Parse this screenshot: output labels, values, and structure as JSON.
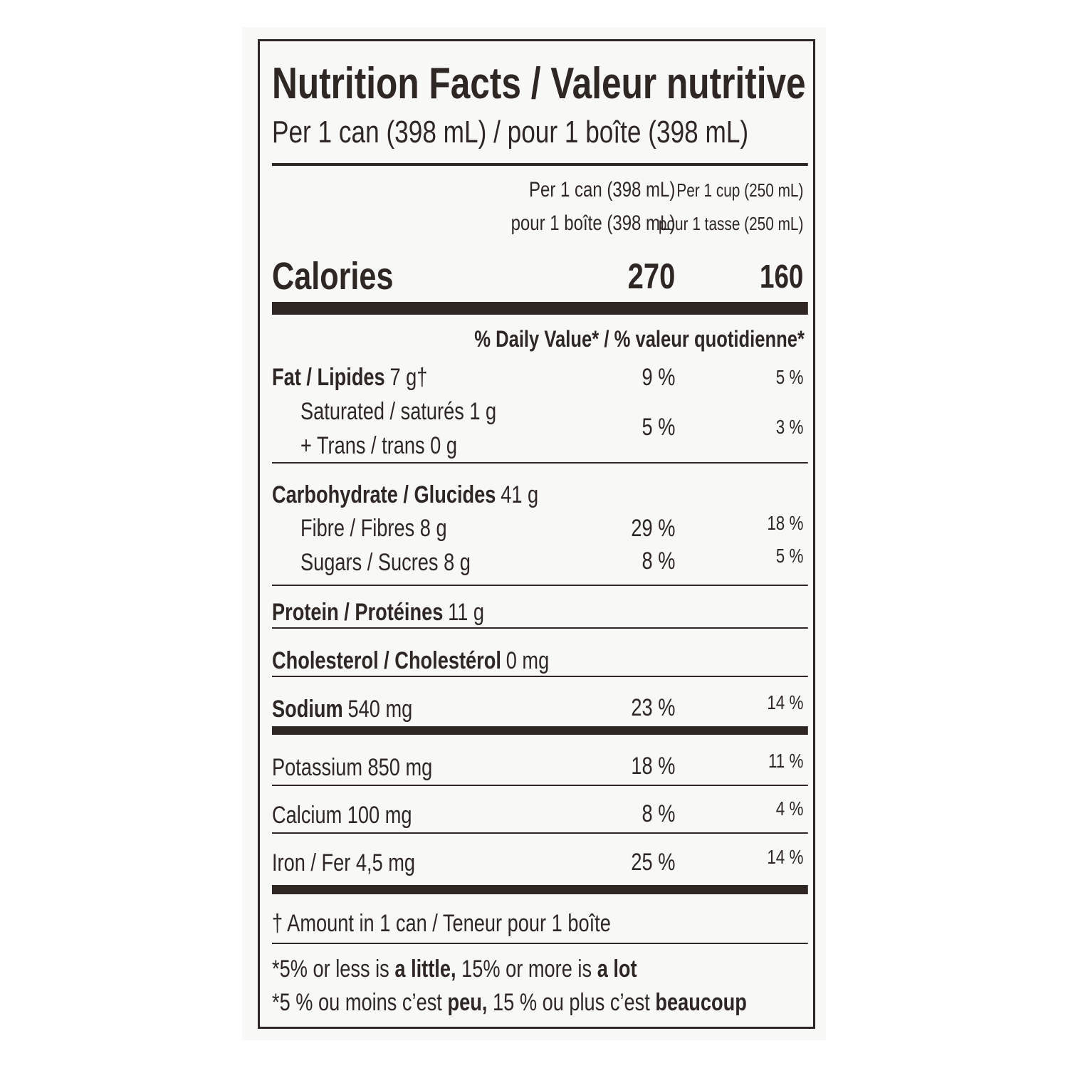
{
  "title": "Nutrition Facts / Valeur nutritive",
  "serving": "Per 1 can (398 mL) / pour 1 boîte (398 mL)",
  "columns": [
    [
      "Per 1 can (398 mL)",
      "pour 1 boîte (398 mL)"
    ],
    [
      "Per 1 cup (250 mL)",
      "pour 1 tasse (250 mL)"
    ]
  ],
  "calories": {
    "label": "Calories",
    "values": [
      "270",
      "160"
    ]
  },
  "daily_value_header": "% Daily Value* / % valeur quotidienne*",
  "rows": [
    {
      "name": "Fat / Lipides",
      "amount": "7 g†",
      "dv": [
        "9 %",
        "5 %"
      ]
    },
    {
      "lines": [
        "Saturated / saturés 1 g",
        "+ Trans / trans 0 g"
      ],
      "dv": [
        "5 %",
        "3 %"
      ]
    },
    {
      "name": "Carbohydrate / Glucides",
      "amount": "41 g"
    },
    {
      "text": "Fibre / Fibres 8 g",
      "dv": [
        "29 %",
        "18 %"
      ]
    },
    {
      "text": "Sugars / Sucres 8 g",
      "dv": [
        "8 %",
        "5 %"
      ]
    },
    {
      "name": "Protein / Protéines",
      "amount": "11 g"
    },
    {
      "name": "Cholesterol / Cholestérol",
      "amount": "0 mg"
    },
    {
      "name": "Sodium",
      "amount": "540 mg",
      "dv": [
        "23 %",
        "14 %"
      ]
    },
    {
      "text": "Potassium 850 mg",
      "dv": [
        "18 %",
        "11 %"
      ]
    },
    {
      "text": "Calcium 100 mg",
      "dv": [
        "8 %",
        "4 %"
      ]
    },
    {
      "text": "Iron / Fer 4,5 mg",
      "dv": [
        "25 %",
        "14 %"
      ]
    }
  ],
  "footnote": "† Amount in 1 can / Teneur pour 1 boîte",
  "notes": [
    [
      {
        "text": "*5% or less is",
        "bold": false
      },
      {
        "text": "a little,",
        "bold": true
      },
      {
        "text": "15% or more is",
        "bold": false
      },
      {
        "text": "a lot",
        "bold": true
      }
    ],
    [
      {
        "text": "*5 % ou moins c’est",
        "bold": false
      },
      {
        "text": "peu,",
        "bold": true
      },
      {
        "text": "15 % ou plus c’est",
        "bold": false
      },
      {
        "text": "beaucoup",
        "bold": true
      }
    ]
  ]
}
